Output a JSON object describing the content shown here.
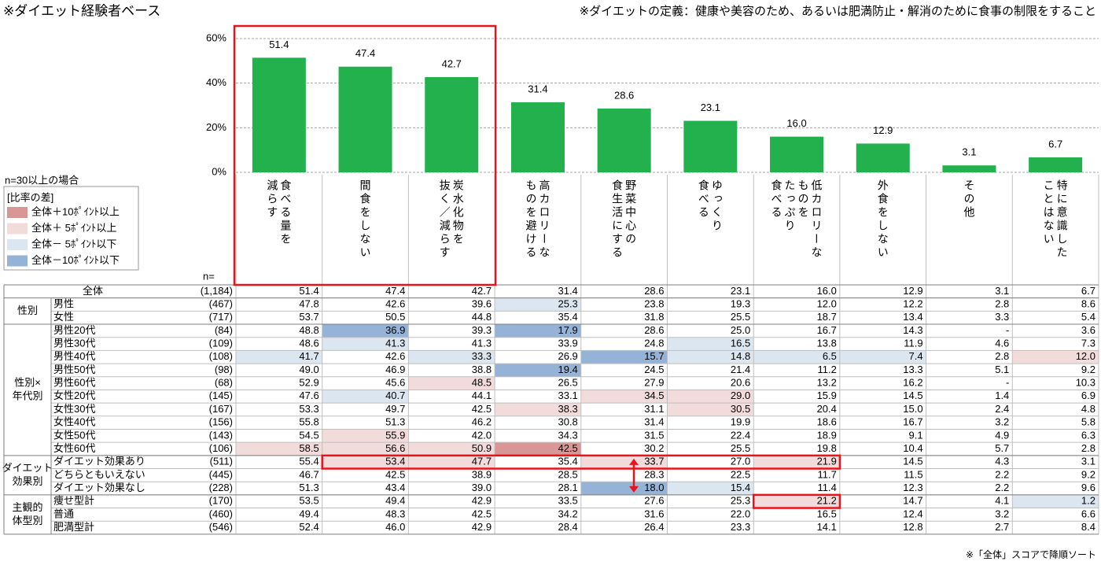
{
  "header": {
    "title": "※ダイエット経験者ベース",
    "definition": "※ダイエットの定義：健康や美容のため、あるいは肥満防止・解消のために食事の制限をすること"
  },
  "chart_data": {
    "type": "bar",
    "categories": [
      [
        "食べる量を",
        "減らす"
      ],
      [
        "間食をしない"
      ],
      [
        "炭水化物を",
        "抜く／減らす"
      ],
      [
        "高カロリーな",
        "ものを避ける"
      ],
      [
        "野菜中心の",
        "食生活にする"
      ],
      [
        "ゆっくり",
        "食べる"
      ],
      [
        "低カロリーな",
        "ものを",
        "たっぷり",
        "食べる"
      ],
      [
        "外食をしない"
      ],
      [
        "その他"
      ],
      [
        "特に意識した",
        "ことはない"
      ]
    ],
    "values": [
      51.4,
      47.4,
      42.7,
      31.4,
      28.6,
      23.1,
      16.0,
      12.9,
      3.1,
      6.7
    ],
    "value_labels": [
      "51.4",
      "47.4",
      "42.7",
      "31.4",
      "28.6",
      "23.1",
      "16.0",
      "12.9",
      "3.1",
      "6.7"
    ],
    "color": "#22b14c",
    "ylim": [
      0,
      60
    ],
    "yticks": [
      {
        "value": 0,
        "label": "0%"
      },
      {
        "value": 20,
        "label": "20%"
      },
      {
        "value": 40,
        "label": "40%"
      },
      {
        "value": 60,
        "label": "60%"
      }
    ],
    "grid": true
  },
  "legend": {
    "note": "n=30以上の場合",
    "title": "[比率の差]",
    "items": [
      {
        "label": "全体＋10ﾎﾟｲﾝﾄ以上",
        "color": "#da9694"
      },
      {
        "label": "全体＋ 5ﾎﾟｲﾝﾄ以上",
        "color": "#f2dcdb"
      },
      {
        "label": "全体－ 5ﾎﾟｲﾝﾄ以下",
        "color": "#dce6f1"
      },
      {
        "label": "全体－10ﾎﾟｲﾝﾄ以下",
        "color": "#95b3d7"
      }
    ]
  },
  "table": {
    "n_header": "n=",
    "total": {
      "label": "全体",
      "n": "(1,184)",
      "values": [
        "51.4",
        "47.4",
        "42.7",
        "31.4",
        "28.6",
        "23.1",
        "16.0",
        "12.9",
        "3.1",
        "6.7"
      ]
    },
    "groups": [
      {
        "label": [
          "性別"
        ],
        "rows": [
          {
            "label": "男性",
            "n": "(467)",
            "values": [
              "47.8",
              "42.6",
              "39.6",
              "25.3",
              "23.8",
              "19.3",
              "12.0",
              "12.2",
              "2.8",
              "8.6"
            ],
            "shades": [
              null,
              null,
              null,
              "#dce6f1",
              null,
              null,
              null,
              null,
              null,
              null
            ]
          },
          {
            "label": "女性",
            "n": "(717)",
            "values": [
              "53.7",
              "50.5",
              "44.8",
              "35.4",
              "31.8",
              "25.5",
              "18.7",
              "13.4",
              "3.3",
              "5.4"
            ]
          }
        ]
      },
      {
        "label": [
          "性別×",
          "年代別"
        ],
        "rows": [
          {
            "label": "男性20代",
            "n": "(84)",
            "values": [
              "48.8",
              "36.9",
              "39.3",
              "17.9",
              "28.6",
              "25.0",
              "16.7",
              "14.3",
              "-",
              "3.6"
            ],
            "shades": [
              null,
              "#95b3d7",
              null,
              "#95b3d7",
              null,
              null,
              null,
              null,
              null,
              null
            ]
          },
          {
            "label": "男性30代",
            "n": "(109)",
            "values": [
              "48.6",
              "41.3",
              "41.3",
              "33.9",
              "24.8",
              "16.5",
              "13.8",
              "11.9",
              "4.6",
              "7.3"
            ],
            "shades": [
              null,
              "#dce6f1",
              null,
              null,
              null,
              "#dce6f1",
              null,
              null,
              null,
              null
            ]
          },
          {
            "label": "男性40代",
            "n": "(108)",
            "values": [
              "41.7",
              "42.6",
              "33.3",
              "26.9",
              "15.7",
              "14.8",
              "6.5",
              "7.4",
              "2.8",
              "12.0"
            ],
            "shades": [
              "#dce6f1",
              null,
              "#dce6f1",
              null,
              "#95b3d7",
              "#dce6f1",
              "#dce6f1",
              "#dce6f1",
              null,
              "#f2dcdb"
            ]
          },
          {
            "label": "男性50代",
            "n": "(98)",
            "values": [
              "49.0",
              "46.9",
              "38.8",
              "19.4",
              "24.5",
              "21.4",
              "11.2",
              "13.3",
              "5.1",
              "9.2"
            ],
            "shades": [
              null,
              null,
              null,
              "#95b3d7",
              null,
              null,
              null,
              null,
              null,
              null
            ]
          },
          {
            "label": "男性60代",
            "n": "(68)",
            "values": [
              "52.9",
              "45.6",
              "48.5",
              "26.5",
              "27.9",
              "20.6",
              "13.2",
              "16.2",
              "-",
              "10.3"
            ],
            "shades": [
              null,
              null,
              "#f2dcdb",
              null,
              null,
              null,
              null,
              null,
              null,
              null
            ]
          },
          {
            "label": "女性20代",
            "n": "(145)",
            "values": [
              "47.6",
              "40.7",
              "44.1",
              "33.1",
              "34.5",
              "29.0",
              "15.9",
              "14.5",
              "1.4",
              "6.9"
            ],
            "shades": [
              null,
              "#dce6f1",
              null,
              null,
              "#f2dcdb",
              "#f2dcdb",
              null,
              null,
              null,
              null
            ]
          },
          {
            "label": "女性30代",
            "n": "(167)",
            "values": [
              "53.3",
              "49.7",
              "42.5",
              "38.3",
              "31.1",
              "30.5",
              "20.4",
              "15.0",
              "2.4",
              "4.8"
            ],
            "shades": [
              null,
              null,
              null,
              "#f2dcdb",
              null,
              "#f2dcdb",
              null,
              null,
              null,
              null
            ]
          },
          {
            "label": "女性40代",
            "n": "(156)",
            "values": [
              "55.8",
              "51.3",
              "46.2",
              "30.8",
              "31.4",
              "19.9",
              "18.6",
              "16.7",
              "3.2",
              "5.8"
            ]
          },
          {
            "label": "女性50代",
            "n": "(143)",
            "values": [
              "54.5",
              "55.9",
              "42.0",
              "34.3",
              "31.5",
              "22.4",
              "18.9",
              "9.1",
              "4.9",
              "6.3"
            ],
            "shades": [
              null,
              "#f2dcdb",
              null,
              null,
              null,
              null,
              null,
              null,
              null,
              null
            ]
          },
          {
            "label": "女性60代",
            "n": "(106)",
            "values": [
              "58.5",
              "56.6",
              "50.9",
              "42.5",
              "30.2",
              "25.5",
              "19.8",
              "10.4",
              "5.7",
              "2.8"
            ],
            "shades": [
              "#f2dcdb",
              "#f2dcdb",
              "#f2dcdb",
              "#da9694",
              null,
              null,
              null,
              null,
              null,
              null
            ]
          }
        ]
      },
      {
        "label": [
          "ダイエット",
          "効果別"
        ],
        "rows": [
          {
            "label": "ダイエット効果あり",
            "n": "(511)",
            "values": [
              "55.4",
              "53.4",
              "47.7",
              "35.4",
              "33.7",
              "27.0",
              "21.9",
              "14.5",
              "4.3",
              "3.1"
            ],
            "shades": [
              null,
              "#f2dcdb",
              "#f2dcdb",
              null,
              "#f2dcdb",
              null,
              "#f2dcdb",
              null,
              null,
              null
            ]
          },
          {
            "label": "どちらともいえない",
            "n": "(445)",
            "values": [
              "46.7",
              "42.5",
              "38.9",
              "28.5",
              "28.3",
              "22.5",
              "11.7",
              "11.5",
              "2.2",
              "9.2"
            ]
          },
          {
            "label": "ダイエット効果なし",
            "n": "(228)",
            "values": [
              "51.3",
              "43.4",
              "39.0",
              "28.1",
              "18.0",
              "15.4",
              "11.4",
              "12.3",
              "2.2",
              "9.6"
            ],
            "shades": [
              null,
              null,
              null,
              null,
              "#95b3d7",
              "#dce6f1",
              null,
              null,
              null,
              null
            ]
          }
        ]
      },
      {
        "label": [
          "主観的",
          "体型別"
        ],
        "rows": [
          {
            "label": "痩せ型計",
            "n": "(170)",
            "values": [
              "53.5",
              "49.4",
              "42.9",
              "33.5",
              "27.6",
              "25.3",
              "21.2",
              "14.7",
              "4.1",
              "1.2"
            ],
            "shades": [
              null,
              null,
              null,
              null,
              null,
              null,
              "#f2dcdb",
              null,
              null,
              "#dce6f1"
            ]
          },
          {
            "label": "普通",
            "n": "(460)",
            "values": [
              "49.4",
              "48.3",
              "42.5",
              "34.2",
              "31.6",
              "22.0",
              "16.5",
              "12.4",
              "3.2",
              "6.6"
            ]
          },
          {
            "label": "肥満型計",
            "n": "(546)",
            "values": [
              "52.4",
              "46.0",
              "42.9",
              "28.4",
              "26.4",
              "23.3",
              "14.1",
              "12.8",
              "2.7",
              "8.4"
            ]
          }
        ]
      }
    ]
  },
  "footnote": "※「全体」スコアで降順ソート"
}
